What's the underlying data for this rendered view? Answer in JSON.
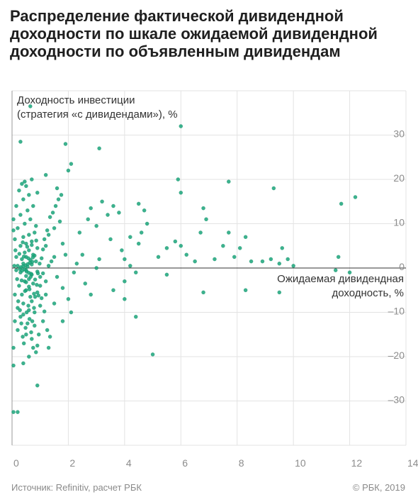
{
  "title": "Распределение фактической дивидендной доходности по шкале ожидаемой дивидендной доходности по объявленным дивидендам",
  "source": "Источник: Refinitiv, расчет РБК",
  "copyright": "© РБК, 2019",
  "chart_data": {
    "type": "scatter",
    "title": "Распределение фактической дивидендной доходности по шкале ожидаемой дивидендной доходности по объявленным дивидендам",
    "ylabel_lines": [
      "Доходность инвестиции",
      "(стратегия «с дивидендами»), %"
    ],
    "xlabel_lines": [
      "Ожидаемая дивидендная",
      "доходность, %"
    ],
    "xlim": [
      0,
      14
    ],
    "ylim": [
      -40,
      40
    ],
    "x_ticks": [
      0,
      2,
      4,
      6,
      8,
      10,
      12,
      14
    ],
    "y_ticks": [
      -30,
      -20,
      -10,
      0,
      10,
      20,
      30
    ],
    "x_tick_labels": [
      "0",
      "2",
      "4",
      "6",
      "8",
      "10",
      "12",
      "14"
    ],
    "y_tick_labels": [
      "–30",
      "–20",
      "–10",
      "0",
      "10",
      "20",
      "30"
    ],
    "grid": true,
    "point_color": "#1aa57a",
    "points": [
      [
        0.05,
        -32.5
      ],
      [
        0.2,
        -32.5
      ],
      [
        0.05,
        -22
      ],
      [
        0.05,
        -18
      ],
      [
        0.4,
        -21.5
      ],
      [
        0.6,
        -20
      ],
      [
        0.9,
        -26.5
      ],
      [
        0.2,
        -14
      ],
      [
        0.5,
        -15
      ],
      [
        0.7,
        -16
      ],
      [
        0.9,
        -17.5
      ],
      [
        1.3,
        -18
      ],
      [
        0.1,
        -12
      ],
      [
        0.3,
        -11
      ],
      [
        0.55,
        -12.5
      ],
      [
        0.8,
        -13
      ],
      [
        1.1,
        -12
      ],
      [
        0.2,
        -9
      ],
      [
        0.4,
        -8
      ],
      [
        0.6,
        -9.5
      ],
      [
        0.8,
        -10
      ],
      [
        1.0,
        -8.5
      ],
      [
        0.35,
        -6
      ],
      [
        0.5,
        -5
      ],
      [
        0.65,
        -6.5
      ],
      [
        0.9,
        -5.5
      ],
      [
        1.2,
        -6
      ],
      [
        1.5,
        -8
      ],
      [
        0.25,
        -4
      ],
      [
        0.45,
        -3
      ],
      [
        0.6,
        -2.5
      ],
      [
        0.75,
        -3.5
      ],
      [
        1.0,
        -2
      ],
      [
        0.3,
        -1
      ],
      [
        0.5,
        -0.5
      ],
      [
        0.7,
        -1.5
      ],
      [
        0.9,
        -0.8
      ],
      [
        1.1,
        -1.2
      ],
      [
        0.2,
        0.5
      ],
      [
        0.4,
        1.0
      ],
      [
        0.55,
        0.3
      ],
      [
        0.7,
        0.8
      ],
      [
        0.85,
        1.5
      ],
      [
        0.35,
        2.0
      ],
      [
        0.5,
        2.5
      ],
      [
        0.65,
        1.8
      ],
      [
        0.8,
        2.8
      ],
      [
        0.45,
        3.5
      ],
      [
        0.6,
        4.0
      ],
      [
        0.75,
        3.0
      ],
      [
        0.9,
        4.5
      ],
      [
        0.3,
        5.0
      ],
      [
        0.5,
        5.5
      ],
      [
        0.7,
        6.0
      ],
      [
        0.4,
        7.0
      ],
      [
        0.6,
        7.5
      ],
      [
        0.8,
        8.0
      ],
      [
        0.2,
        9.0
      ],
      [
        0.45,
        10.0
      ],
      [
        0.65,
        11.0
      ],
      [
        0.85,
        9.5
      ],
      [
        0.3,
        12.0
      ],
      [
        0.55,
        13.0
      ],
      [
        0.75,
        14.0
      ],
      [
        0.4,
        15.5
      ],
      [
        0.6,
        16.5
      ],
      [
        0.9,
        17.0
      ],
      [
        0.5,
        18.5
      ],
      [
        0.7,
        20.0
      ],
      [
        0.35,
        19.0
      ],
      [
        1.2,
        21.0
      ],
      [
        1.6,
        18.0
      ],
      [
        0.3,
        28.5
      ],
      [
        0.65,
        36.5
      ],
      [
        0.05,
        11.0
      ],
      [
        0.1,
        6.5
      ],
      [
        0.15,
        2.5
      ],
      [
        0.15,
        -0.5
      ],
      [
        0.1,
        -6.0
      ],
      [
        0.5,
        -1.8
      ],
      [
        0.6,
        -4.2
      ],
      [
        0.7,
        -7.5
      ],
      [
        0.4,
        -10.5
      ],
      [
        1.0,
        -4.0
      ],
      [
        1.2,
        -3.0
      ],
      [
        1.3,
        0.5
      ],
      [
        1.4,
        1.5
      ],
      [
        1.5,
        2.5
      ],
      [
        1.2,
        5.0
      ],
      [
        1.3,
        7.5
      ],
      [
        1.5,
        9.0
      ],
      [
        1.7,
        10.5
      ],
      [
        1.8,
        5.5
      ],
      [
        1.9,
        3.0
      ],
      [
        1.6,
        -2.0
      ],
      [
        1.8,
        -4.5
      ],
      [
        2.0,
        -7.0
      ],
      [
        2.1,
        -10.0
      ],
      [
        1.8,
        -12.0
      ],
      [
        2.2,
        -1.0
      ],
      [
        2.3,
        1.0
      ],
      [
        2.5,
        3.0
      ],
      [
        2.6,
        -3.5
      ],
      [
        2.8,
        -6.0
      ],
      [
        3.0,
        0.0
      ],
      [
        3.1,
        2.0
      ],
      [
        2.4,
        8.0
      ],
      [
        2.7,
        11.0
      ],
      [
        2.8,
        13.5
      ],
      [
        3.0,
        9.5
      ],
      [
        3.2,
        15.0
      ],
      [
        3.4,
        12.0
      ],
      [
        3.6,
        14.0
      ],
      [
        3.8,
        12.5
      ],
      [
        3.5,
        6.5
      ],
      [
        3.9,
        4.0
      ],
      [
        4.0,
        2.0
      ],
      [
        4.2,
        0.5
      ],
      [
        4.4,
        -1.0
      ],
      [
        4.5,
        5.5
      ],
      [
        4.6,
        8.0
      ],
      [
        4.8,
        10.0
      ],
      [
        4.7,
        13.0
      ],
      [
        4.5,
        14.5
      ],
      [
        4.2,
        7.0
      ],
      [
        4.0,
        -3.0
      ],
      [
        3.6,
        -5.0
      ],
      [
        4.0,
        -7.0
      ],
      [
        4.4,
        -11.0
      ],
      [
        5.0,
        -19.5
      ],
      [
        5.2,
        2.5
      ],
      [
        5.5,
        4.5
      ],
      [
        5.8,
        6.0
      ],
      [
        6.0,
        5.0
      ],
      [
        6.2,
        3.0
      ],
      [
        6.5,
        1.5
      ],
      [
        6.7,
        8.0
      ],
      [
        6.9,
        11.0
      ],
      [
        7.2,
        2.0
      ],
      [
        7.5,
        5.0
      ],
      [
        7.7,
        8.0
      ],
      [
        7.9,
        2.5
      ],
      [
        8.1,
        4.5
      ],
      [
        8.3,
        7.0
      ],
      [
        8.5,
        1.5
      ],
      [
        8.9,
        1.5
      ],
      [
        9.2,
        2.0
      ],
      [
        9.5,
        1.0
      ],
      [
        9.6,
        4.5
      ],
      [
        9.8,
        2.0
      ],
      [
        10.0,
        0.5
      ],
      [
        6.0,
        32.0
      ],
      [
        5.9,
        20.0
      ],
      [
        6.0,
        17.0
      ],
      [
        6.8,
        13.5
      ],
      [
        7.7,
        19.5
      ],
      [
        9.3,
        18.0
      ],
      [
        11.7,
        14.5
      ],
      [
        12.2,
        16.0
      ],
      [
        11.6,
        2.5
      ],
      [
        12.0,
        -1.0
      ],
      [
        11.5,
        -0.5
      ],
      [
        9.5,
        -5.5
      ],
      [
        8.3,
        -5.0
      ],
      [
        6.8,
        -5.5
      ],
      [
        5.5,
        -1.5
      ],
      [
        1.9,
        28.0
      ],
      [
        2.0,
        22.0
      ],
      [
        2.1,
        23.5
      ],
      [
        3.1,
        27.0
      ],
      [
        0.25,
        17.5
      ],
      [
        0.45,
        19.5
      ],
      [
        0.15,
        14.0
      ],
      [
        0.05,
        8.5
      ],
      [
        0.12,
        4.0
      ],
      [
        0.08,
        0.5
      ],
      [
        0.18,
        -2.5
      ],
      [
        0.22,
        -7.5
      ],
      [
        0.28,
        -9.5
      ],
      [
        0.33,
        -12.5
      ],
      [
        0.38,
        -15.5
      ],
      [
        0.42,
        -17.0
      ],
      [
        0.48,
        -13.5
      ],
      [
        0.52,
        -10.0
      ],
      [
        0.58,
        -8.5
      ],
      [
        0.62,
        -11.5
      ],
      [
        0.68,
        -14.5
      ],
      [
        0.72,
        -12.0
      ],
      [
        0.78,
        -9.0
      ],
      [
        0.82,
        -6.5
      ],
      [
        0.88,
        -3.8
      ],
      [
        0.92,
        -1.2
      ],
      [
        0.98,
        1.0
      ],
      [
        1.05,
        2.2
      ],
      [
        1.1,
        4.2
      ],
      [
        1.15,
        6.5
      ],
      [
        1.25,
        8.5
      ],
      [
        1.35,
        11.5
      ],
      [
        1.45,
        12.5
      ],
      [
        1.55,
        14.0
      ],
      [
        1.65,
        15.5
      ],
      [
        1.75,
        16.5
      ],
      [
        1.05,
        -6.8
      ],
      [
        1.15,
        -9.8
      ],
      [
        1.25,
        -14.0
      ],
      [
        1.35,
        -15.5
      ],
      [
        0.95,
        -15.0
      ],
      [
        0.85,
        -19.0
      ],
      [
        0.75,
        -18.0
      ],
      [
        0.28,
        -0.2
      ],
      [
        0.32,
        0.2
      ],
      [
        0.36,
        -0.6
      ],
      [
        0.4,
        0.4
      ],
      [
        0.44,
        -0.3
      ],
      [
        0.48,
        0.6
      ],
      [
        0.52,
        -0.8
      ],
      [
        0.56,
        0.9
      ],
      [
        0.6,
        -1.1
      ],
      [
        0.64,
        1.2
      ],
      [
        0.68,
        -1.3
      ],
      [
        0.72,
        1.4
      ],
      [
        0.26,
        3.2
      ],
      [
        0.34,
        -2.8
      ],
      [
        0.42,
        2.6
      ],
      [
        0.5,
        -3.2
      ],
      [
        0.58,
        2.2
      ],
      [
        0.66,
        -2.0
      ],
      [
        0.74,
        2.4
      ],
      [
        0.82,
        -2.6
      ],
      [
        0.38,
        5.8
      ],
      [
        0.46,
        -5.2
      ],
      [
        0.54,
        4.8
      ],
      [
        0.62,
        -4.8
      ],
      [
        0.7,
        5.2
      ],
      [
        0.78,
        -5.8
      ],
      [
        0.86,
        6.2
      ],
      [
        0.94,
        -6.2
      ]
    ]
  }
}
